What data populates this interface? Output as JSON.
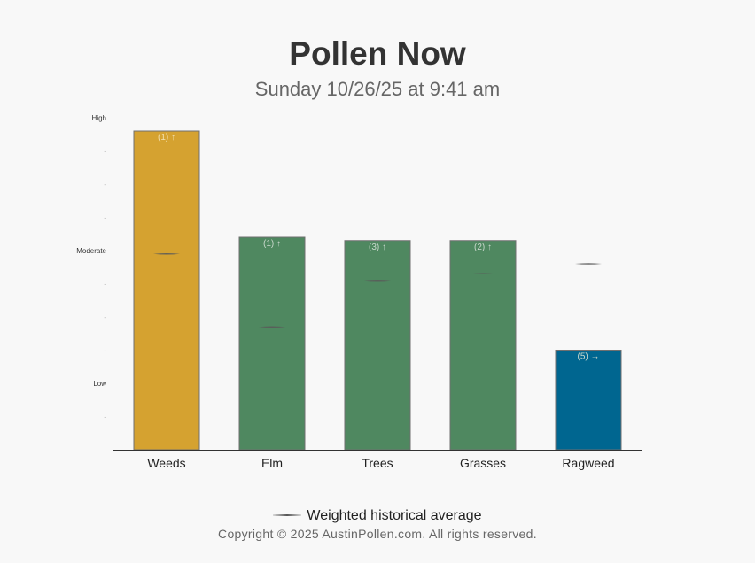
{
  "header": {
    "title": "Pollen Now",
    "subtitle": "Sunday 10/26/25 at 9:41 am"
  },
  "legend": {
    "label": "Weighted historical average"
  },
  "footer": {
    "copyright": "Copyright © 2025 AustinPollen.com.  All rights reserved."
  },
  "colors": {
    "weeds": "#d5a230",
    "green": "#4f8860",
    "ragweed": "#006690",
    "average_line": "#555555"
  },
  "chart_data": {
    "type": "bar",
    "categories": [
      "Weeds",
      "Elm",
      "Trees",
      "Grasses",
      "Ragweed"
    ],
    "values": [
      9.6,
      6.4,
      6.3,
      6.3,
      3.0
    ],
    "averages": [
      5.9,
      3.7,
      5.1,
      5.3,
      5.6
    ],
    "bar_labels": [
      "(1) ↑",
      "(1) ↑",
      "(3) ↑",
      "(2) ↑",
      "(5) →"
    ],
    "bar_colors": [
      "#d5a230",
      "#4f8860",
      "#4f8860",
      "#4f8860",
      "#006690"
    ],
    "ylim": [
      0,
      10
    ],
    "yticks": [
      {
        "value": 1,
        "label": "-"
      },
      {
        "value": 2,
        "label": "Low"
      },
      {
        "value": 3,
        "label": "-"
      },
      {
        "value": 4,
        "label": "-"
      },
      {
        "value": 5,
        "label": "-"
      },
      {
        "value": 6,
        "label": "Moderate"
      },
      {
        "value": 7,
        "label": "-"
      },
      {
        "value": 8,
        "label": "-"
      },
      {
        "value": 9,
        "label": "-"
      },
      {
        "value": 10,
        "label": "High"
      }
    ],
    "legend_position": "bottom"
  }
}
